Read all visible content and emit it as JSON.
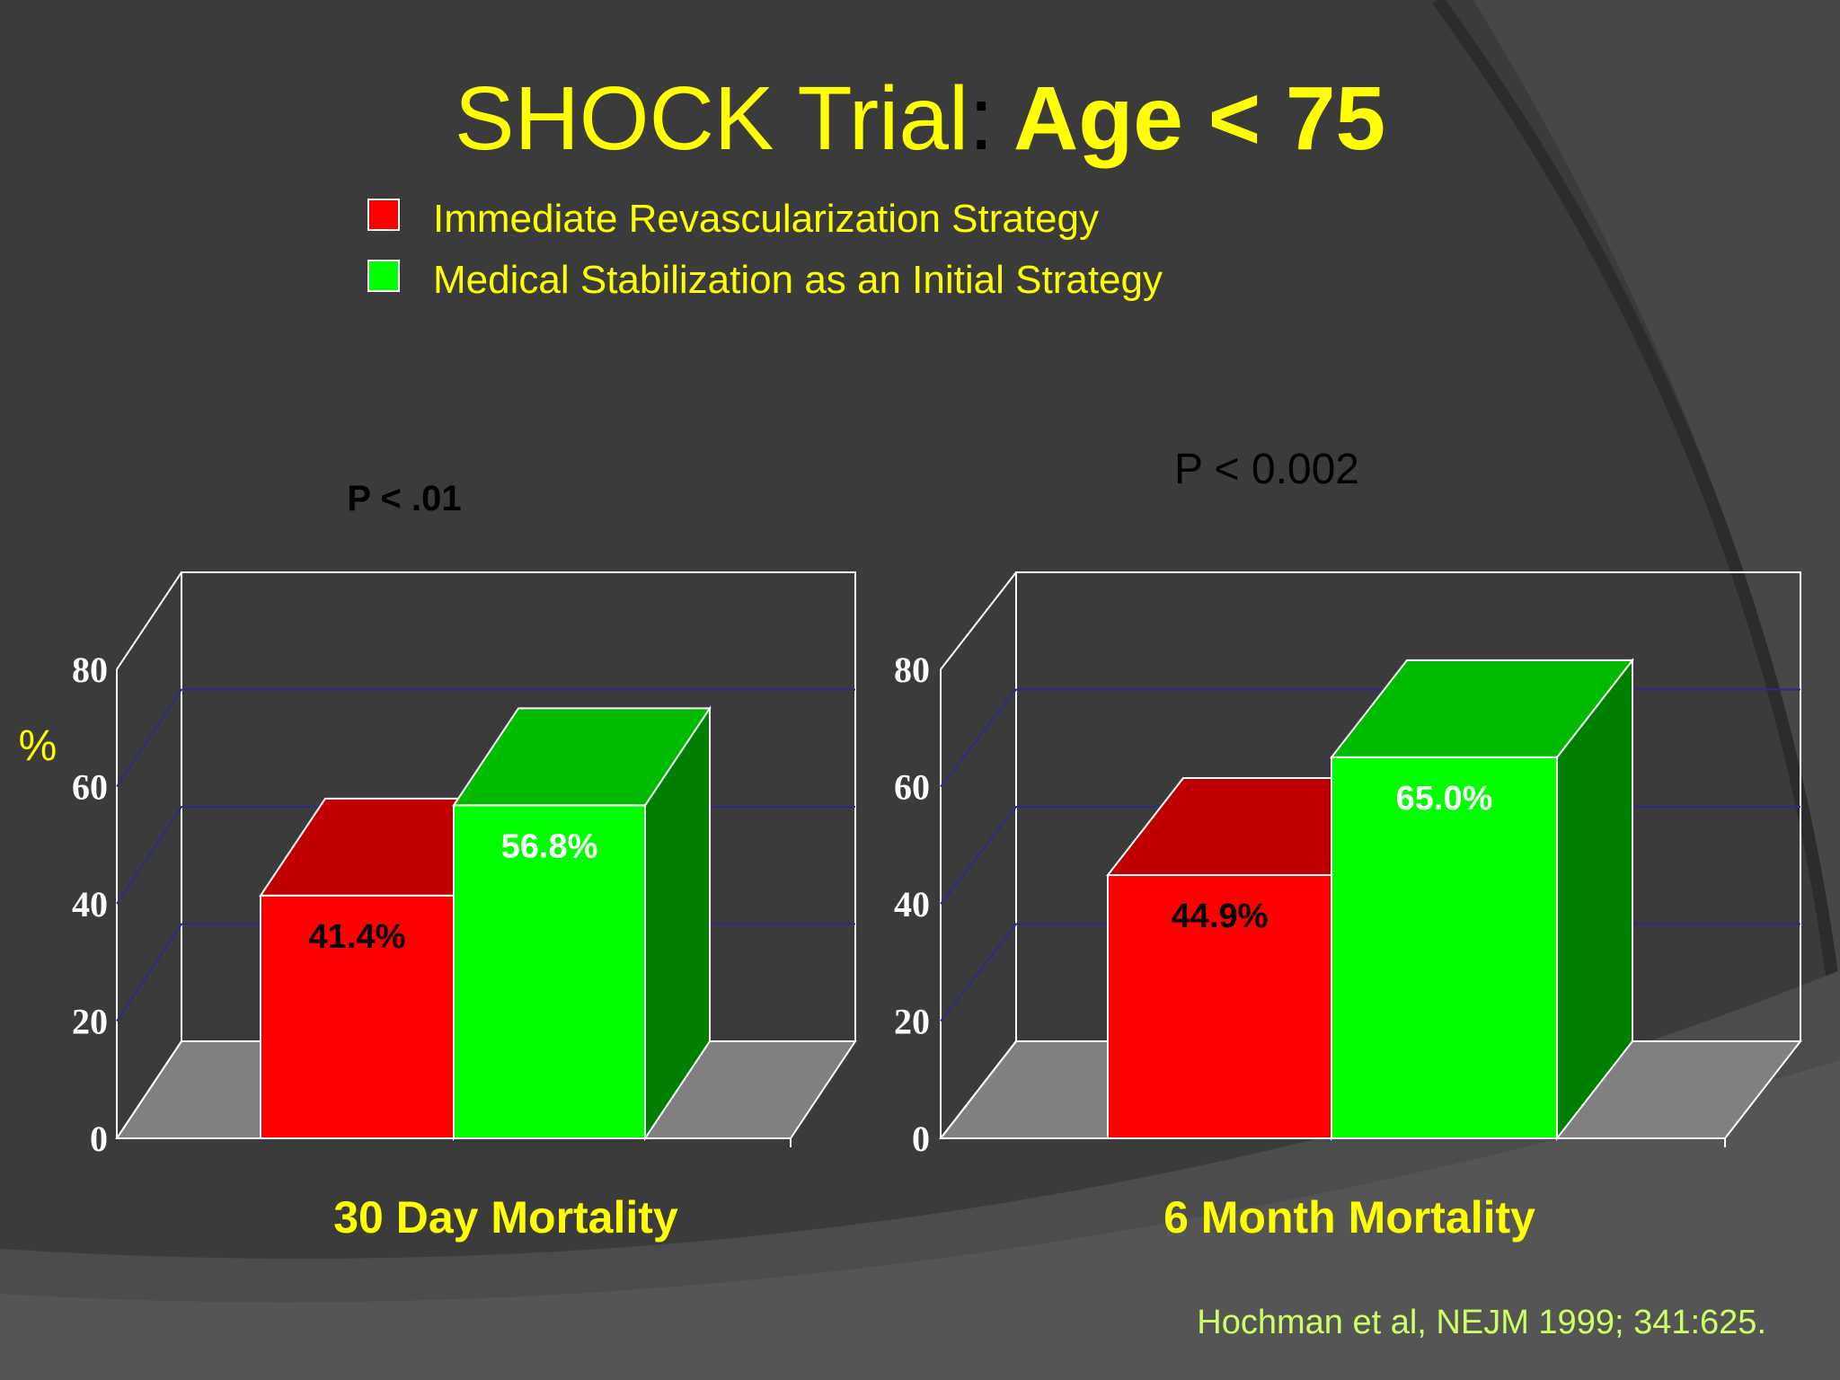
{
  "slide": {
    "title_regular": "SHOCK Trial",
    "title_colon": ":",
    "title_bold": "Age < 75",
    "citation": "Hochman et al, NEJM 1999; 341:625.",
    "ylabel": "%",
    "colors": {
      "background": "#3b3b3b",
      "title_yellow": "#ffff00",
      "citation_green": "#ccff66",
      "red_front": "#ff0000",
      "red_top": "#c00000",
      "green_front": "#00ff00",
      "green_top": "#00bb00",
      "green_side": "#008000",
      "floor": "#808080",
      "grid": "#2b2b8a",
      "frame": "#ffffff"
    }
  },
  "legend": [
    {
      "label": "Immediate Revascularization Strategy",
      "color": "#ff0000"
    },
    {
      "label": "Medical Stabilization as an Initial Strategy",
      "color": "#00ff00"
    }
  ],
  "chart_data": [
    {
      "type": "bar",
      "xlabel": "30 Day Mortality",
      "ylabel": "%",
      "ylim": [
        0,
        80
      ],
      "yticks": [
        "0",
        "20",
        "40",
        "60",
        "80"
      ],
      "pvalue": "P < .01",
      "series": [
        {
          "name": "Immediate Revascularization Strategy",
          "value": 41.4,
          "label": "41.4%"
        },
        {
          "name": "Medical Stabilization as an Initial Strategy",
          "value": 56.8,
          "label": "56.8%"
        }
      ]
    },
    {
      "type": "bar",
      "xlabel": "6 Month Mortality",
      "ylabel": "%",
      "ylim": [
        0,
        80
      ],
      "yticks": [
        "0",
        "20",
        "40",
        "60",
        "80"
      ],
      "pvalue": "P < 0.002",
      "series": [
        {
          "name": "Immediate Revascularization Strategy",
          "value": 44.9,
          "label": "44.9%"
        },
        {
          "name": "Medical Stabilization as an Initial Strategy",
          "value": 65.0,
          "label": "65.0%"
        }
      ]
    }
  ]
}
